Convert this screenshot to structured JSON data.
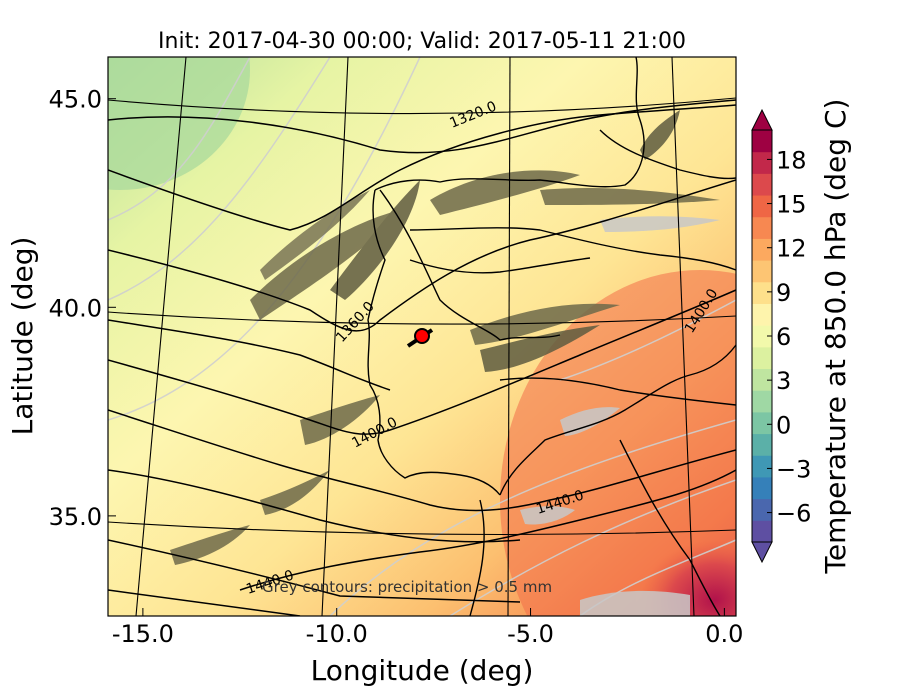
{
  "title": "Init: 2017-04-30 00:00; Valid: 2017-05-11 21:00",
  "x_axis": {
    "label": "Longitude (deg)",
    "ticks": [
      {
        "value": -15.0,
        "label": "-15.0"
      },
      {
        "value": -10.0,
        "label": "-10.0"
      },
      {
        "value": -5.0,
        "label": "-5.0"
      },
      {
        "value": 0.0,
        "label": "0.0"
      }
    ]
  },
  "y_axis": {
    "label": "Latitude (deg)",
    "ticks": [
      {
        "value": 45.0,
        "label": "45.0"
      },
      {
        "value": 40.0,
        "label": "40.0"
      },
      {
        "value": 35.0,
        "label": "35.0"
      }
    ]
  },
  "colorbar": {
    "label": "Temperature at 850.0 hPa (deg C)",
    "range": [
      -8,
      20
    ],
    "extend": "both",
    "ticks": [
      {
        "value": -6,
        "label": "−6"
      },
      {
        "value": -3,
        "label": "−3"
      },
      {
        "value": 0,
        "label": "0"
      },
      {
        "value": 3,
        "label": "3"
      },
      {
        "value": 6,
        "label": "6"
      },
      {
        "value": 9,
        "label": "9"
      },
      {
        "value": 12,
        "label": "12"
      },
      {
        "value": 15,
        "label": "15"
      },
      {
        "value": 18,
        "label": "18"
      }
    ],
    "colors": [
      "#5e4fa2",
      "#4a67ae",
      "#3580b9",
      "#3f98b5",
      "#5bb0a8",
      "#7cc6a4",
      "#9fd8a4",
      "#bfe5a0",
      "#dcf1a0",
      "#f2f9ab",
      "#fef4ac",
      "#fee08b",
      "#fdc573",
      "#fca95f",
      "#f78851",
      "#ef6645",
      "#dc494c",
      "#c2284a",
      "#9e0142"
    ]
  },
  "height_contours": [
    {
      "label": "1320.0"
    },
    {
      "label": "1360.0"
    },
    {
      "label": "1400.0"
    },
    {
      "label": "1400.0"
    },
    {
      "label": "1440.0"
    },
    {
      "label": "1440.0"
    }
  ],
  "annotation": "Grey contours: precipitation > 0.5 mm",
  "marker": {
    "lon": -7.7,
    "lat": 39.3,
    "color": "#ff0000"
  }
}
